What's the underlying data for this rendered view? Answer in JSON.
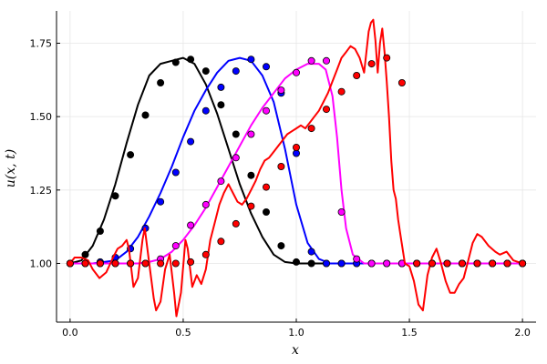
{
  "chart_data": {
    "type": "line",
    "title": "",
    "xlabel": "x",
    "ylabel": "u(x, t)",
    "xlim": [
      -0.06,
      2.06
    ],
    "ylim": [
      0.8,
      1.86
    ],
    "x_ticks": [
      {
        "value": 0.0,
        "label": "0.0"
      },
      {
        "value": 0.5,
        "label": "0.5"
      },
      {
        "value": 1.0,
        "label": "1.0"
      },
      {
        "value": 1.5,
        "label": "1.5"
      },
      {
        "value": 2.0,
        "label": "2.0"
      }
    ],
    "y_ticks": [
      {
        "value": 1.0,
        "label": "1.00"
      },
      {
        "value": 1.25,
        "label": "1.25"
      },
      {
        "value": 1.5,
        "label": "1.50"
      },
      {
        "value": 1.75,
        "label": "1.75"
      }
    ],
    "grid": true,
    "legend": "none",
    "series": [
      {
        "color": "#000000",
        "line": {
          "x": [
            0.0,
            0.05,
            0.1,
            0.15,
            0.2,
            0.25,
            0.3,
            0.35,
            0.4,
            0.45,
            0.5,
            0.55,
            0.6,
            0.65,
            0.7,
            0.75,
            0.8,
            0.85,
            0.9,
            0.95,
            1.0,
            1.05,
            1.1,
            1.2,
            1.4,
            1.6,
            1.8,
            2.0
          ],
          "y": [
            1.0,
            1.01,
            1.06,
            1.15,
            1.27,
            1.41,
            1.54,
            1.64,
            1.68,
            1.69,
            1.7,
            1.68,
            1.61,
            1.51,
            1.39,
            1.27,
            1.17,
            1.09,
            1.03,
            1.005,
            1.0,
            1.0,
            1.0,
            1.0,
            1.0,
            1.0,
            1.0,
            1.0
          ]
        },
        "points": {
          "x": [
            0.0,
            0.067,
            0.133,
            0.2,
            0.267,
            0.333,
            0.4,
            0.467,
            0.533,
            0.6,
            0.667,
            0.733,
            0.8,
            0.867,
            0.933,
            1.0,
            1.067,
            1.133,
            1.2,
            1.267,
            1.333,
            1.4,
            1.467,
            1.533,
            1.6,
            1.667,
            1.733,
            1.8,
            1.867,
            1.933,
            2.0
          ],
          "y": [
            1.0,
            1.03,
            1.11,
            1.23,
            1.37,
            1.505,
            1.615,
            1.685,
            1.695,
            1.655,
            1.54,
            1.44,
            1.3,
            1.175,
            1.06,
            1.005,
            1.0,
            1.0,
            1.0,
            1.0,
            1.0,
            1.0,
            1.0,
            1.0,
            1.0,
            1.0,
            1.0,
            1.0,
            1.0,
            1.0,
            1.0
          ]
        }
      },
      {
        "color": "#0000ff",
        "line": {
          "x": [
            0.0,
            0.1,
            0.2,
            0.25,
            0.3,
            0.35,
            0.4,
            0.45,
            0.5,
            0.55,
            0.6,
            0.65,
            0.7,
            0.75,
            0.8,
            0.85,
            0.9,
            0.95,
            1.0,
            1.05,
            1.1,
            1.15,
            1.2,
            1.4,
            1.6,
            1.8,
            2.0
          ],
          "y": [
            1.0,
            1.0,
            1.01,
            1.04,
            1.09,
            1.16,
            1.24,
            1.33,
            1.43,
            1.52,
            1.59,
            1.65,
            1.69,
            1.7,
            1.69,
            1.64,
            1.55,
            1.39,
            1.2,
            1.07,
            1.015,
            1.0,
            1.0,
            1.0,
            1.0,
            1.0,
            1.0
          ]
        },
        "points": {
          "x": [
            0.0,
            0.067,
            0.133,
            0.2,
            0.267,
            0.333,
            0.4,
            0.467,
            0.533,
            0.6,
            0.667,
            0.733,
            0.8,
            0.867,
            0.933,
            1.0,
            1.067,
            1.133,
            1.2,
            1.267,
            1.333,
            1.4,
            1.467,
            1.533,
            1.6,
            1.667,
            1.733,
            1.8,
            1.867,
            1.933,
            2.0
          ],
          "y": [
            1.0,
            1.0,
            1.005,
            1.02,
            1.05,
            1.12,
            1.21,
            1.31,
            1.415,
            1.52,
            1.6,
            1.655,
            1.695,
            1.67,
            1.58,
            1.375,
            1.04,
            1.0,
            1.0,
            1.0,
            1.0,
            1.0,
            1.0,
            1.0,
            1.0,
            1.0,
            1.0,
            1.0,
            1.0,
            1.0,
            1.0
          ]
        }
      },
      {
        "color": "#ff00ff",
        "line": {
          "x": [
            0.0,
            0.2,
            0.3,
            0.35,
            0.4,
            0.45,
            0.5,
            0.55,
            0.6,
            0.65,
            0.7,
            0.75,
            0.8,
            0.85,
            0.9,
            0.95,
            1.0,
            1.05,
            1.1,
            1.13,
            1.16,
            1.18,
            1.2,
            1.22,
            1.25,
            1.3,
            1.4,
            1.6,
            1.8,
            2.0
          ],
          "y": [
            1.0,
            1.0,
            1.0,
            1.005,
            1.015,
            1.04,
            1.08,
            1.13,
            1.19,
            1.26,
            1.33,
            1.4,
            1.47,
            1.53,
            1.58,
            1.63,
            1.66,
            1.68,
            1.68,
            1.66,
            1.57,
            1.43,
            1.25,
            1.12,
            1.03,
            1.0,
            1.0,
            1.0,
            1.0,
            1.0
          ]
        },
        "points": {
          "x": [
            0.0,
            0.067,
            0.133,
            0.2,
            0.267,
            0.333,
            0.4,
            0.467,
            0.533,
            0.6,
            0.667,
            0.733,
            0.8,
            0.867,
            0.933,
            1.0,
            1.067,
            1.133,
            1.2,
            1.267,
            1.333,
            1.4,
            1.467,
            1.533,
            1.6,
            1.667,
            1.733,
            1.8,
            1.867,
            1.933,
            2.0
          ],
          "y": [
            1.0,
            1.0,
            1.0,
            1.0,
            1.0,
            1.0,
            1.015,
            1.06,
            1.13,
            1.2,
            1.28,
            1.36,
            1.44,
            1.52,
            1.59,
            1.65,
            1.69,
            1.69,
            1.175,
            1.015,
            1.0,
            1.0,
            1.0,
            1.0,
            1.0,
            1.0,
            1.0,
            1.0,
            1.0,
            1.0,
            1.0
          ]
        }
      },
      {
        "color": "#ff0000",
        "line": {
          "x": [
            0.0,
            0.02,
            0.05,
            0.08,
            0.1,
            0.13,
            0.16,
            0.19,
            0.21,
            0.23,
            0.25,
            0.26,
            0.28,
            0.3,
            0.32,
            0.33,
            0.35,
            0.37,
            0.38,
            0.4,
            0.42,
            0.44,
            0.46,
            0.47,
            0.49,
            0.51,
            0.52,
            0.54,
            0.56,
            0.58,
            0.6,
            0.62,
            0.64,
            0.66,
            0.68,
            0.7,
            0.72,
            0.74,
            0.76,
            0.78,
            0.8,
            0.82,
            0.84,
            0.86,
            0.88,
            0.9,
            0.92,
            0.94,
            0.96,
            0.98,
            1.0,
            1.02,
            1.04,
            1.06,
            1.08,
            1.1,
            1.12,
            1.14,
            1.16,
            1.18,
            1.2,
            1.22,
            1.24,
            1.26,
            1.28,
            1.3,
            1.31,
            1.32,
            1.33,
            1.34,
            1.35,
            1.36,
            1.37,
            1.38,
            1.39,
            1.4,
            1.41,
            1.42,
            1.43,
            1.44,
            1.45,
            1.46,
            1.47,
            1.48,
            1.5,
            1.52,
            1.54,
            1.56,
            1.58,
            1.6,
            1.62,
            1.64,
            1.66,
            1.68,
            1.7,
            1.72,
            1.74,
            1.76,
            1.78,
            1.8,
            1.82,
            1.85,
            1.88,
            1.9,
            1.93,
            1.96,
            2.0
          ],
          "y": [
            1.0,
            1.02,
            1.02,
            1.01,
            0.98,
            0.95,
            0.97,
            1.02,
            1.05,
            1.06,
            1.08,
            1.05,
            0.92,
            0.95,
            1.08,
            1.12,
            1.0,
            0.88,
            0.84,
            0.87,
            0.98,
            1.03,
            0.9,
            0.82,
            0.9,
            1.08,
            1.05,
            0.92,
            0.96,
            0.93,
            0.98,
            1.08,
            1.14,
            1.2,
            1.24,
            1.27,
            1.24,
            1.21,
            1.2,
            1.22,
            1.25,
            1.28,
            1.32,
            1.35,
            1.36,
            1.38,
            1.4,
            1.42,
            1.44,
            1.45,
            1.46,
            1.47,
            1.46,
            1.48,
            1.5,
            1.52,
            1.55,
            1.58,
            1.62,
            1.66,
            1.7,
            1.72,
            1.74,
            1.73,
            1.7,
            1.65,
            1.72,
            1.79,
            1.82,
            1.83,
            1.76,
            1.65,
            1.75,
            1.8,
            1.72,
            1.62,
            1.5,
            1.35,
            1.25,
            1.22,
            1.15,
            1.1,
            1.05,
            1.0,
            0.99,
            0.94,
            0.86,
            0.84,
            0.96,
            1.02,
            1.05,
            1.0,
            0.94,
            0.9,
            0.9,
            0.93,
            0.95,
            1.01,
            1.07,
            1.1,
            1.09,
            1.06,
            1.04,
            1.03,
            1.04,
            1.01,
            1.0
          ]
        },
        "points": {
          "x": [
            0.0,
            0.067,
            0.133,
            0.2,
            0.267,
            0.333,
            0.4,
            0.467,
            0.533,
            0.6,
            0.667,
            0.733,
            0.8,
            0.867,
            0.933,
            1.0,
            1.067,
            1.133,
            1.2,
            1.267,
            1.333,
            1.4,
            1.467,
            1.533,
            1.6,
            1.667,
            1.733,
            1.8,
            1.867,
            1.933,
            2.0
          ],
          "y": [
            1.0,
            1.0,
            1.0,
            1.0,
            1.0,
            1.0,
            1.0,
            1.0,
            1.005,
            1.03,
            1.075,
            1.135,
            1.195,
            1.26,
            1.33,
            1.395,
            1.46,
            1.525,
            1.585,
            1.64,
            1.68,
            1.7,
            1.615,
            1.0,
            1.0,
            1.0,
            1.0,
            1.0,
            1.0,
            1.0,
            1.0
          ]
        }
      }
    ]
  }
}
